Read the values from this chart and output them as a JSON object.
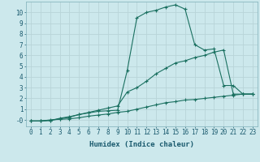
{
  "xlabel": "Humidex (Indice chaleur)",
  "xlim": [
    -0.5,
    23.5
  ],
  "ylim": [
    -0.6,
    11.0
  ],
  "background_color": "#cce8ec",
  "grid_color": "#b8d4d8",
  "line_color": "#1a7060",
  "curve1_x": [
    0,
    1,
    2,
    3,
    4,
    5,
    6,
    7,
    8,
    9,
    10,
    11,
    12,
    13,
    14,
    15,
    16,
    17,
    18,
    19,
    20,
    21,
    22,
    23
  ],
  "curve1_y": [
    -0.1,
    -0.1,
    -0.05,
    0.15,
    0.3,
    0.5,
    0.65,
    0.8,
    0.85,
    0.9,
    4.6,
    9.5,
    10.0,
    10.2,
    10.5,
    10.7,
    10.3,
    7.0,
    6.5,
    6.6,
    3.2,
    3.2,
    2.4,
    2.4
  ],
  "curve2_x": [
    0,
    1,
    2,
    3,
    4,
    5,
    6,
    7,
    8,
    9,
    10,
    11,
    12,
    13,
    14,
    15,
    16,
    17,
    18,
    19,
    20,
    21,
    22,
    23
  ],
  "curve2_y": [
    -0.1,
    -0.1,
    -0.05,
    0.1,
    0.25,
    0.5,
    0.7,
    0.9,
    1.1,
    1.3,
    2.6,
    3.0,
    3.6,
    4.3,
    4.8,
    5.3,
    5.5,
    5.8,
    6.0,
    6.3,
    6.5,
    2.4,
    2.4,
    2.4
  ],
  "curve3_x": [
    0,
    1,
    2,
    3,
    4,
    5,
    6,
    7,
    8,
    9,
    10,
    11,
    12,
    13,
    14,
    15,
    16,
    17,
    18,
    19,
    20,
    21,
    22,
    23
  ],
  "curve3_y": [
    -0.1,
    -0.1,
    0.0,
    0.05,
    0.1,
    0.2,
    0.35,
    0.45,
    0.55,
    0.7,
    0.8,
    1.0,
    1.2,
    1.4,
    1.6,
    1.7,
    1.85,
    1.9,
    2.0,
    2.1,
    2.2,
    2.3,
    2.4,
    2.4
  ],
  "xticks": [
    0,
    1,
    2,
    3,
    4,
    5,
    6,
    7,
    8,
    9,
    10,
    11,
    12,
    13,
    14,
    15,
    16,
    17,
    18,
    19,
    20,
    21,
    22,
    23
  ],
  "ytick_labels": [
    "-0",
    "1",
    "2",
    "3",
    "4",
    "5",
    "6",
    "7",
    "8",
    "9",
    "10"
  ],
  "marker": "+",
  "markersize": 3,
  "linewidth": 0.8,
  "tick_fontsize": 5.5,
  "label_fontsize": 6.5
}
